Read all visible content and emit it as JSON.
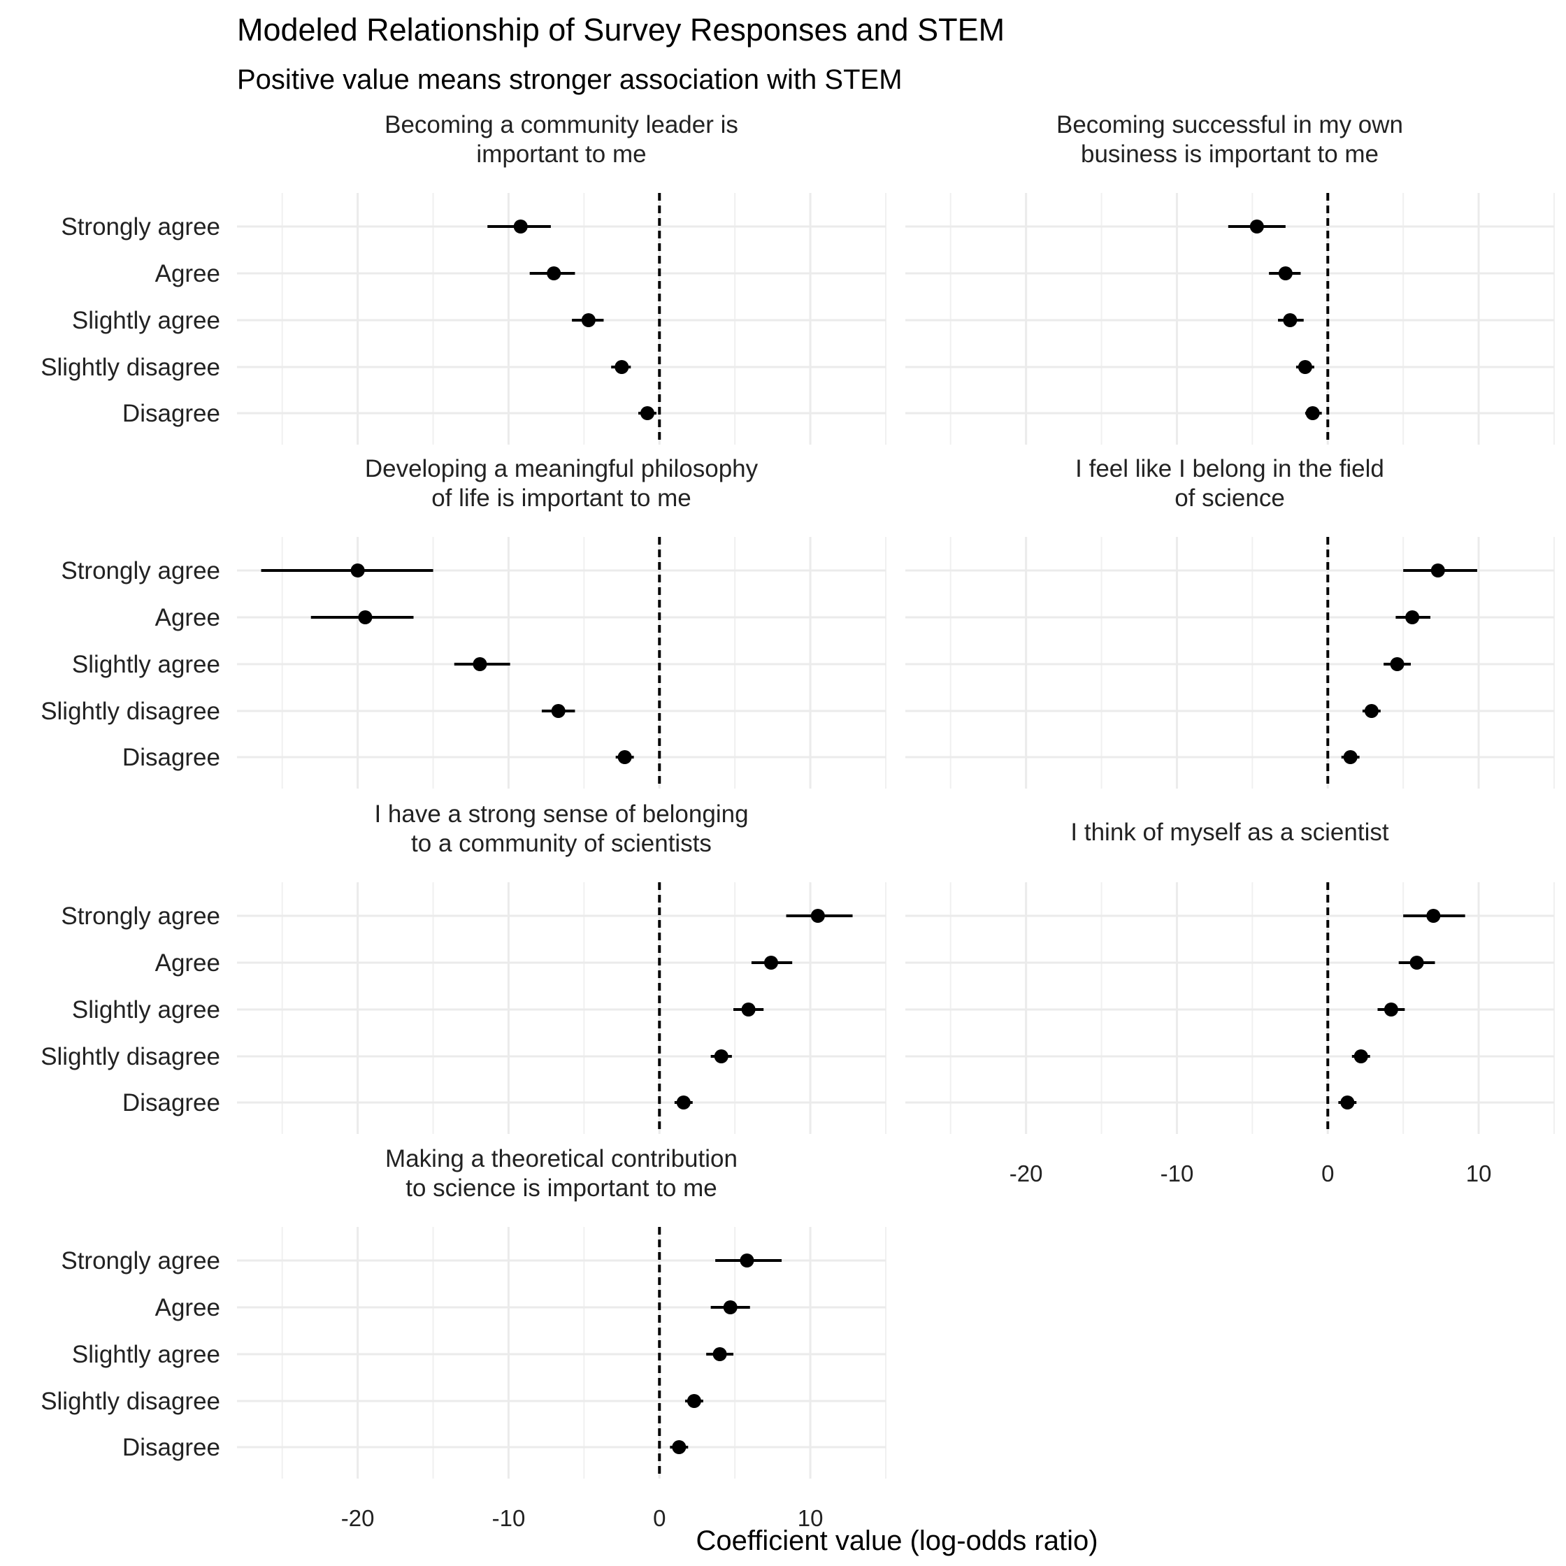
{
  "chart_data": {
    "type": "scatter",
    "title": "Modeled Relationship of Survey Responses and STEM",
    "subtitle": "Positive value means stronger association with STEM",
    "xlabel": "Coefficient value (log-odds ratio)",
    "xlim": [
      -28,
      15
    ],
    "xticks": [
      -20,
      -10,
      0,
      10
    ],
    "reference_line": 0,
    "grid": true,
    "categories": [
      "Strongly agree",
      "Agree",
      "Slightly agree",
      "Slightly disagree",
      "Disagree"
    ],
    "panels": [
      {
        "title": "Becoming a community leader is\nimportant to me",
        "estimates": [
          -9.2,
          -7.0,
          -4.7,
          -2.5,
          -0.8
        ],
        "lower": [
          -11.4,
          -8.6,
          -5.8,
          -3.2,
          -1.4
        ],
        "upper": [
          -7.2,
          -5.6,
          -3.7,
          -1.9,
          -0.2
        ]
      },
      {
        "title": "Becoming successful in my own\nbusiness is important to me",
        "estimates": [
          -4.7,
          -2.8,
          -2.5,
          -1.5,
          -1.0
        ],
        "lower": [
          -6.6,
          -3.9,
          -3.3,
          -2.1,
          -1.5
        ],
        "upper": [
          -2.8,
          -1.8,
          -1.6,
          -0.9,
          -0.4
        ]
      },
      {
        "title": "Developing a meaningful philosophy\nof life is important to me",
        "estimates": [
          -20.0,
          -19.5,
          -11.9,
          -6.7,
          -2.3
        ],
        "lower": [
          -26.4,
          -23.1,
          -13.6,
          -7.8,
          -2.9
        ],
        "upper": [
          -15.0,
          -16.3,
          -9.9,
          -5.6,
          -1.7
        ]
      },
      {
        "title": "I feel like I belong in the field\nof science",
        "estimates": [
          7.3,
          5.6,
          4.6,
          2.9,
          1.5
        ],
        "lower": [
          5.0,
          4.5,
          3.7,
          2.3,
          0.9
        ],
        "upper": [
          9.9,
          6.8,
          5.5,
          3.5,
          2.1
        ]
      },
      {
        "title": "I have a strong sense of belonging\nto a community of scientists",
        "estimates": [
          10.5,
          7.4,
          5.9,
          4.1,
          1.6
        ],
        "lower": [
          8.4,
          6.1,
          4.9,
          3.4,
          1.0
        ],
        "upper": [
          12.8,
          8.8,
          6.9,
          4.8,
          2.2
        ]
      },
      {
        "title": "I think of myself as a scientist",
        "estimates": [
          7.0,
          5.9,
          4.2,
          2.2,
          1.3
        ],
        "lower": [
          5.0,
          4.7,
          3.3,
          1.6,
          0.7
        ],
        "upper": [
          9.1,
          7.1,
          5.1,
          2.8,
          1.9
        ]
      },
      {
        "title": "Making a theoretical contribution\nto science is important to me",
        "estimates": [
          5.8,
          4.7,
          4.0,
          2.3,
          1.3
        ],
        "lower": [
          3.7,
          3.4,
          3.1,
          1.7,
          0.7
        ],
        "upper": [
          8.1,
          6.0,
          4.9,
          2.9,
          1.9
        ]
      }
    ]
  }
}
